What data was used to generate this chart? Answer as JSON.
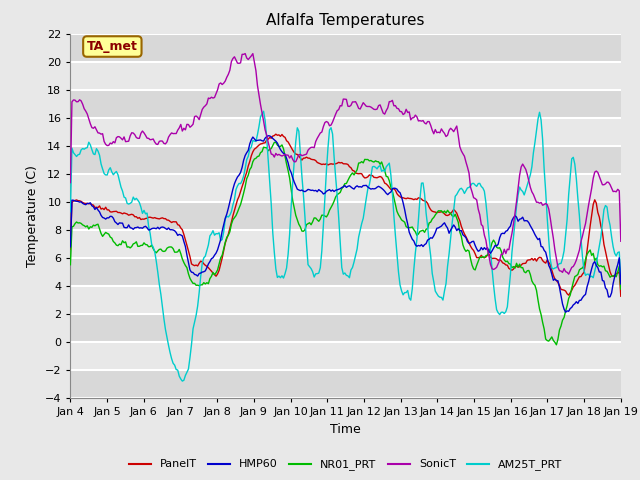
{
  "title": "Alfalfa Temperatures",
  "xlabel": "Time",
  "ylabel": "Temperature (C)",
  "ylim": [
    -4,
    22
  ],
  "yticks": [
    -4,
    -2,
    0,
    2,
    4,
    6,
    8,
    10,
    12,
    14,
    16,
    18,
    20,
    22
  ],
  "annotation": "TA_met",
  "annotation_color": "#8B0000",
  "annotation_bg": "#FFFF99",
  "annotation_border": "#996600",
  "fig_bg": "#E8E8E8",
  "plot_bg": "#E8E8E8",
  "grid_color": "#FFFFFF",
  "series": {
    "PanelT": {
      "color": "#CC0000",
      "lw": 1.0,
      "zorder": 3
    },
    "HMP60": {
      "color": "#0000CC",
      "lw": 1.0,
      "zorder": 4
    },
    "NR01_PRT": {
      "color": "#00BB00",
      "lw": 1.0,
      "zorder": 3
    },
    "SonicT": {
      "color": "#AA00AA",
      "lw": 1.0,
      "zorder": 5
    },
    "AM25T_PRT": {
      "color": "#00CCCC",
      "lw": 1.0,
      "zorder": 3
    }
  },
  "start_day": 4,
  "end_day": 19,
  "n_points": 360,
  "title_fontsize": 11,
  "axis_label_fontsize": 9,
  "tick_fontsize": 8,
  "legend_fontsize": 8,
  "annot_fontsize": 9
}
